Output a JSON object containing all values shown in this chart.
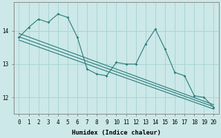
{
  "xlabel": "Humidex (Indice chaleur)",
  "bg_color": "#cce8e8",
  "line_color": "#2d7d7d",
  "grid_color": "#aad4d4",
  "xlim": [
    -0.5,
    20.5
  ],
  "ylim": [
    11.5,
    14.85
  ],
  "yticks": [
    12,
    13,
    14
  ],
  "xticks": [
    0,
    1,
    2,
    3,
    4,
    5,
    6,
    7,
    8,
    9,
    10,
    11,
    12,
    13,
    14,
    15,
    16,
    17,
    18,
    19,
    20
  ],
  "main_series": [
    13.8,
    14.1,
    14.35,
    14.25,
    14.5,
    14.4,
    13.8,
    12.85,
    12.7,
    12.65,
    13.05,
    13.0,
    13.0,
    13.6,
    14.05,
    13.45,
    12.75,
    12.65,
    12.05,
    12.0,
    11.7
  ],
  "reg_lines": [
    [
      [
        0,
        20
      ],
      [
        13.92,
        11.78
      ]
    ],
    [
      [
        0,
        20
      ],
      [
        13.82,
        11.72
      ]
    ],
    [
      [
        0,
        20
      ],
      [
        13.72,
        11.65
      ]
    ]
  ]
}
